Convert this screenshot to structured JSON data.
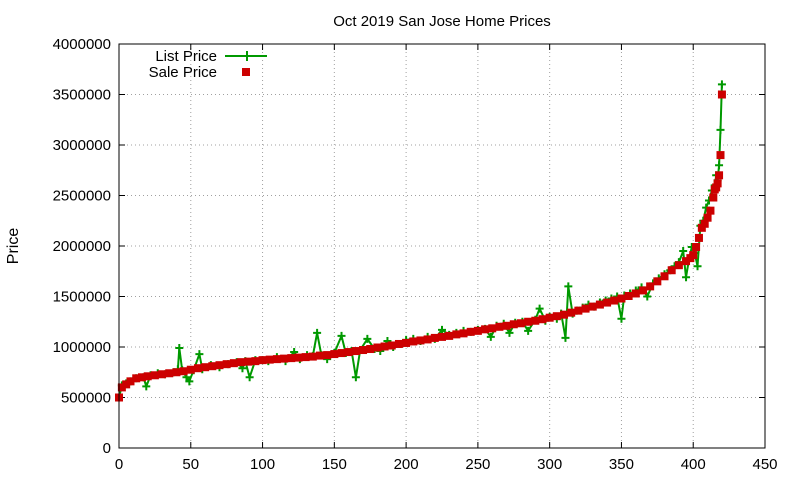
{
  "chart_data": {
    "type": "line",
    "title": "Oct 2019 San Jose Home Prices",
    "xlabel": "",
    "ylabel": "Price",
    "xlim": [
      0,
      450
    ],
    "ylim": [
      0,
      4000000
    ],
    "x_ticks": [
      0,
      50,
      100,
      150,
      200,
      250,
      300,
      350,
      400,
      450
    ],
    "y_ticks": [
      0,
      500000,
      1000000,
      1500000,
      2000000,
      2500000,
      3000000,
      3500000,
      4000000
    ],
    "grid": true,
    "legend_position": "top-left",
    "series": [
      {
        "name": "List Price",
        "style": "line-with-plus-markers",
        "color": "#009900",
        "points": [
          [
            0,
            500000
          ],
          [
            2,
            620000
          ],
          [
            5,
            640000
          ],
          [
            8,
            660000
          ],
          [
            12,
            690000
          ],
          [
            17,
            700000
          ],
          [
            19,
            610000
          ],
          [
            22,
            720000
          ],
          [
            27,
            740000
          ],
          [
            32,
            730000
          ],
          [
            38,
            750000
          ],
          [
            41,
            780000
          ],
          [
            42,
            990000
          ],
          [
            44,
            770000
          ],
          [
            47,
            700000
          ],
          [
            49,
            660000
          ],
          [
            52,
            770000
          ],
          [
            56,
            930000
          ],
          [
            58,
            780000
          ],
          [
            64,
            820000
          ],
          [
            70,
            800000
          ],
          [
            76,
            830000
          ],
          [
            82,
            850000
          ],
          [
            86,
            790000
          ],
          [
            88,
            860000
          ],
          [
            91,
            700000
          ],
          [
            95,
            870000
          ],
          [
            100,
            870000
          ],
          [
            104,
            860000
          ],
          [
            110,
            900000
          ],
          [
            116,
            860000
          ],
          [
            122,
            950000
          ],
          [
            126,
            880000
          ],
          [
            131,
            920000
          ],
          [
            135,
            910000
          ],
          [
            138,
            1140000
          ],
          [
            141,
            920000
          ],
          [
            145,
            880000
          ],
          [
            150,
            940000
          ],
          [
            155,
            1110000
          ],
          [
            158,
            940000
          ],
          [
            162,
            960000
          ],
          [
            165,
            700000
          ],
          [
            168,
            970000
          ],
          [
            173,
            1080000
          ],
          [
            178,
            980000
          ],
          [
            182,
            960000
          ],
          [
            187,
            1060000
          ],
          [
            191,
            1000000
          ],
          [
            196,
            1030000
          ],
          [
            200,
            1070000
          ],
          [
            205,
            1080000
          ],
          [
            210,
            1060000
          ],
          [
            215,
            1100000
          ],
          [
            220,
            1080000
          ],
          [
            225,
            1170000
          ],
          [
            230,
            1120000
          ],
          [
            235,
            1140000
          ],
          [
            240,
            1160000
          ],
          [
            245,
            1150000
          ],
          [
            250,
            1170000
          ],
          [
            255,
            1180000
          ],
          [
            259,
            1100000
          ],
          [
            263,
            1210000
          ],
          [
            268,
            1230000
          ],
          [
            272,
            1140000
          ],
          [
            276,
            1240000
          ],
          [
            281,
            1250000
          ],
          [
            285,
            1160000
          ],
          [
            290,
            1270000
          ],
          [
            293,
            1380000
          ],
          [
            297,
            1260000
          ],
          [
            300,
            1300000
          ],
          [
            305,
            1280000
          ],
          [
            308,
            1330000
          ],
          [
            311,
            1090000
          ],
          [
            313,
            1600000
          ],
          [
            316,
            1330000
          ],
          [
            319,
            1360000
          ],
          [
            323,
            1390000
          ],
          [
            327,
            1420000
          ],
          [
            331,
            1400000
          ],
          [
            335,
            1440000
          ],
          [
            339,
            1460000
          ],
          [
            343,
            1480000
          ],
          [
            347,
            1500000
          ],
          [
            350,
            1280000
          ],
          [
            352,
            1510000
          ],
          [
            356,
            1530000
          ],
          [
            360,
            1560000
          ],
          [
            364,
            1590000
          ],
          [
            368,
            1500000
          ],
          [
            372,
            1630000
          ],
          [
            376,
            1680000
          ],
          [
            380,
            1720000
          ],
          [
            384,
            1760000
          ],
          [
            387,
            1800000
          ],
          [
            390,
            1840000
          ],
          [
            393,
            1950000
          ],
          [
            395,
            1690000
          ],
          [
            397,
            1860000
          ],
          [
            399,
            1990000
          ],
          [
            401,
            1930000
          ],
          [
            403,
            1800000
          ],
          [
            405,
            2200000
          ],
          [
            407,
            2250000
          ],
          [
            409,
            2380000
          ],
          [
            411,
            2450000
          ],
          [
            413,
            2550000
          ],
          [
            415,
            2600000
          ],
          [
            416,
            2700000
          ],
          [
            417,
            2650000
          ],
          [
            418,
            2800000
          ],
          [
            419,
            3150000
          ],
          [
            420,
            3600000
          ]
        ]
      },
      {
        "name": "Sale Price",
        "style": "square-markers",
        "color": "#cc0000",
        "points": [
          [
            0,
            500000
          ],
          [
            2,
            600000
          ],
          [
            5,
            630000
          ],
          [
            8,
            660000
          ],
          [
            12,
            690000
          ],
          [
            16,
            700000
          ],
          [
            20,
            710000
          ],
          [
            25,
            720000
          ],
          [
            30,
            730000
          ],
          [
            35,
            740000
          ],
          [
            40,
            750000
          ],
          [
            45,
            760000
          ],
          [
            50,
            775000
          ],
          [
            55,
            790000
          ],
          [
            60,
            800000
          ],
          [
            65,
            810000
          ],
          [
            70,
            820000
          ],
          [
            75,
            830000
          ],
          [
            80,
            840000
          ],
          [
            85,
            850000
          ],
          [
            90,
            855000
          ],
          [
            95,
            860000
          ],
          [
            100,
            870000
          ],
          [
            105,
            875000
          ],
          [
            110,
            880000
          ],
          [
            115,
            885000
          ],
          [
            120,
            890000
          ],
          [
            125,
            895000
          ],
          [
            130,
            900000
          ],
          [
            135,
            905000
          ],
          [
            140,
            915000
          ],
          [
            145,
            920000
          ],
          [
            150,
            930000
          ],
          [
            155,
            940000
          ],
          [
            160,
            950000
          ],
          [
            165,
            960000
          ],
          [
            170,
            970000
          ],
          [
            175,
            980000
          ],
          [
            180,
            995000
          ],
          [
            185,
            1005000
          ],
          [
            190,
            1015000
          ],
          [
            195,
            1030000
          ],
          [
            200,
            1040000
          ],
          [
            205,
            1055000
          ],
          [
            210,
            1065000
          ],
          [
            215,
            1075000
          ],
          [
            220,
            1090000
          ],
          [
            225,
            1100000
          ],
          [
            230,
            1110000
          ],
          [
            235,
            1125000
          ],
          [
            240,
            1135000
          ],
          [
            245,
            1150000
          ],
          [
            250,
            1160000
          ],
          [
            255,
            1175000
          ],
          [
            260,
            1185000
          ],
          [
            265,
            1200000
          ],
          [
            270,
            1210000
          ],
          [
            275,
            1225000
          ],
          [
            280,
            1235000
          ],
          [
            285,
            1250000
          ],
          [
            290,
            1260000
          ],
          [
            295,
            1275000
          ],
          [
            300,
            1290000
          ],
          [
            305,
            1305000
          ],
          [
            310,
            1320000
          ],
          [
            315,
            1340000
          ],
          [
            320,
            1360000
          ],
          [
            325,
            1380000
          ],
          [
            330,
            1400000
          ],
          [
            335,
            1420000
          ],
          [
            340,
            1440000
          ],
          [
            345,
            1460000
          ],
          [
            350,
            1480000
          ],
          [
            355,
            1505000
          ],
          [
            360,
            1530000
          ],
          [
            365,
            1560000
          ],
          [
            370,
            1600000
          ],
          [
            375,
            1650000
          ],
          [
            380,
            1700000
          ],
          [
            385,
            1760000
          ],
          [
            390,
            1810000
          ],
          [
            395,
            1850000
          ],
          [
            398,
            1880000
          ],
          [
            400,
            1910000
          ],
          [
            402,
            1990000
          ],
          [
            404,
            2080000
          ],
          [
            406,
            2180000
          ],
          [
            408,
            2220000
          ],
          [
            410,
            2280000
          ],
          [
            412,
            2350000
          ],
          [
            414,
            2480000
          ],
          [
            415,
            2560000
          ],
          [
            416,
            2580000
          ],
          [
            417,
            2620000
          ],
          [
            418,
            2700000
          ],
          [
            419,
            2900000
          ],
          [
            420,
            3500000
          ]
        ]
      }
    ]
  }
}
